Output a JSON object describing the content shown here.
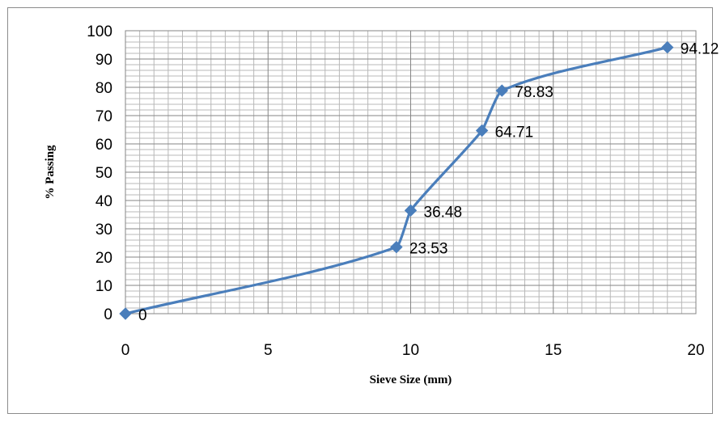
{
  "chart_data": {
    "type": "line",
    "xlabel": "Sieve Size (mm)",
    "ylabel": "% Passing",
    "xlim": [
      0,
      20
    ],
    "ylim": [
      0,
      100
    ],
    "x_ticks": [
      "0",
      "5",
      "10",
      "15",
      "20"
    ],
    "y_ticks": [
      "0",
      "10",
      "20",
      "30",
      "40",
      "50",
      "60",
      "70",
      "80",
      "90",
      "100"
    ],
    "grid": true,
    "smooth": true,
    "marker": "diamond",
    "series": [
      {
        "color": "#4a7ebb",
        "points": [
          {
            "x": 0,
            "y": 0,
            "label": "0"
          },
          {
            "x": 9.5,
            "y": 23.53,
            "label": "23.53"
          },
          {
            "x": 10,
            "y": 36.48,
            "label": "36.48"
          },
          {
            "x": 12.5,
            "y": 64.71,
            "label": "64.71"
          },
          {
            "x": 13.2,
            "y": 78.83,
            "label": "78.83"
          },
          {
            "x": 19,
            "y": 94.12,
            "label": "94.12"
          }
        ]
      }
    ]
  }
}
